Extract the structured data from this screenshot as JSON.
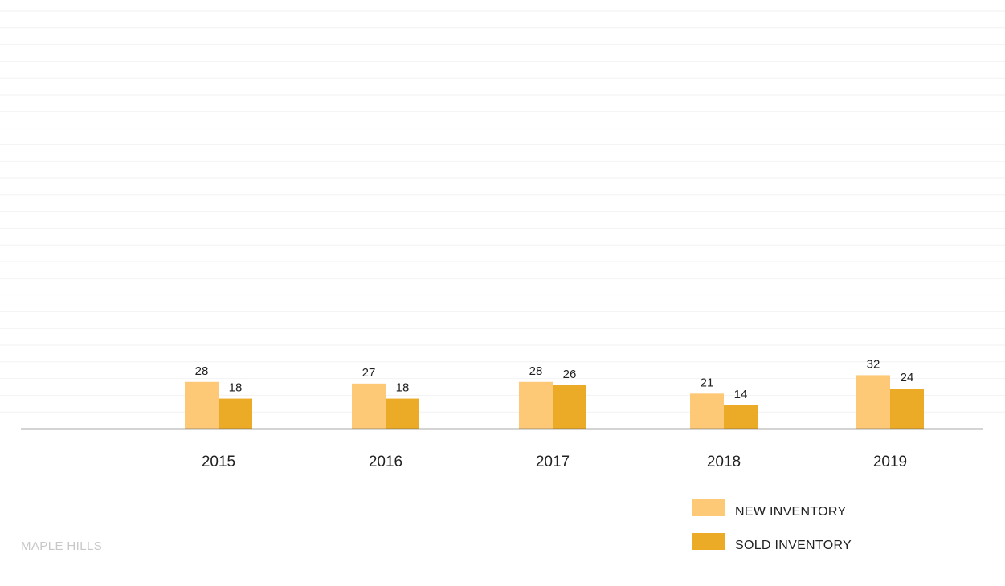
{
  "brand": "MAPLE HILLS",
  "colors": {
    "new": "#fdc977",
    "sold": "#ebab26",
    "grid": "#f2f2f2",
    "axis": "#555555"
  },
  "chart_data": {
    "type": "bar",
    "categories": [
      "2015",
      "2016",
      "2017",
      "2018",
      "2019"
    ],
    "series": [
      {
        "name": "NEW INVENTORY",
        "values": [
          28,
          27,
          28,
          21,
          32
        ]
      },
      {
        "name": "SOLD INVENTORY",
        "values": [
          18,
          18,
          26,
          14,
          24
        ]
      }
    ],
    "title": "",
    "xlabel": "",
    "ylabel": "",
    "ylim": [
      0,
      250
    ],
    "grid": true,
    "legend_position": "bottom-right"
  }
}
